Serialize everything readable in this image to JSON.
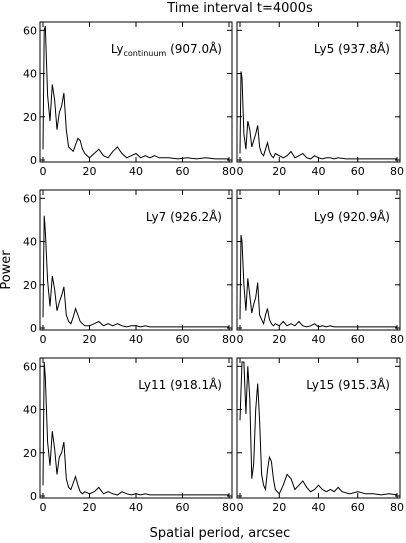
{
  "figure": {
    "title": "Time interval t=4000s",
    "xlabel": "Spatial period, arcsec",
    "ylabel": "Power"
  },
  "chart_data": [
    {
      "type": "line",
      "label_main": "Ly",
      "label_sub": "continuum",
      "label_rest": " (907.0Å)",
      "xlim": [
        0,
        80
      ],
      "ylim": [
        0,
        62
      ],
      "xticks": [
        0,
        20,
        40,
        60,
        80
      ],
      "yticks": [
        0,
        20,
        40,
        60
      ],
      "x": [
        0,
        0.5,
        1,
        2,
        3,
        4,
        5,
        6,
        7,
        8,
        9,
        10,
        11,
        12,
        13,
        14,
        15,
        16,
        17,
        18,
        19,
        20,
        22,
        24,
        26,
        28,
        30,
        32,
        34,
        36,
        38,
        40,
        42,
        44,
        46,
        48,
        50,
        54,
        58,
        62,
        66,
        70,
        74,
        78,
        80
      ],
      "y": [
        5,
        60,
        62,
        30,
        18,
        35,
        28,
        14,
        22,
        25,
        31,
        14,
        6,
        5,
        4,
        7,
        10,
        9,
        5,
        3,
        2,
        1,
        3,
        5,
        2,
        1,
        4,
        6,
        3,
        1,
        2,
        3,
        1,
        2,
        1,
        2,
        1,
        1,
        0.5,
        1,
        0.5,
        1,
        0.5,
        0.5,
        0.5
      ]
    },
    {
      "type": "line",
      "label_main": "Ly5",
      "label_sub": "",
      "label_rest": " (937.8Å)",
      "xlim": [
        0,
        80
      ],
      "ylim": [
        0,
        62
      ],
      "xticks": [
        0,
        20,
        40,
        60,
        80
      ],
      "yticks": [
        0,
        20,
        40,
        60
      ],
      "x": [
        0,
        0.5,
        1,
        2,
        3,
        4,
        5,
        6,
        7,
        8,
        9,
        10,
        11,
        12,
        13,
        14,
        15,
        16,
        17,
        18,
        20,
        22,
        24,
        26,
        28,
        30,
        32,
        34,
        36,
        38,
        40,
        42,
        44,
        46,
        48,
        50,
        54,
        58,
        62,
        66,
        70,
        74,
        78,
        80
      ],
      "y": [
        3,
        41,
        38,
        12,
        5,
        18,
        14,
        6,
        9,
        12,
        16,
        6,
        3,
        2,
        5,
        8,
        4,
        2,
        1,
        3,
        2,
        1,
        2,
        4,
        1,
        2,
        3,
        1,
        0.5,
        2,
        1,
        0.5,
        1,
        1,
        0.5,
        1,
        0.5,
        0.5,
        0.5,
        0.5,
        0.5,
        0.5,
        0.5,
        0.5
      ]
    },
    {
      "type": "line",
      "label_main": "Ly7",
      "label_sub": "",
      "label_rest": " (926.2Å)",
      "xlim": [
        0,
        80
      ],
      "ylim": [
        0,
        62
      ],
      "xticks": [
        0,
        20,
        40,
        60,
        80
      ],
      "yticks": [
        0,
        20,
        40,
        60
      ],
      "x": [
        0,
        0.5,
        1,
        2,
        3,
        4,
        5,
        6,
        7,
        8,
        9,
        10,
        11,
        12,
        13,
        14,
        15,
        16,
        17,
        18,
        20,
        22,
        24,
        26,
        28,
        30,
        32,
        34,
        36,
        38,
        40,
        42,
        44,
        46,
        48,
        50,
        54,
        58,
        62,
        66,
        70,
        74,
        78,
        80
      ],
      "y": [
        5,
        52,
        45,
        22,
        10,
        24,
        18,
        8,
        12,
        15,
        19,
        6,
        3,
        2,
        5,
        9,
        6,
        3,
        2,
        1,
        1,
        2,
        3,
        1,
        2,
        1,
        2,
        1,
        0.5,
        1,
        1,
        0.5,
        1,
        0.5,
        0.5,
        0.5,
        0.5,
        0.5,
        0.5,
        0.5,
        0.5,
        0.5,
        0.5,
        0.5
      ]
    },
    {
      "type": "line",
      "label_main": "Ly9",
      "label_sub": "",
      "label_rest": " (920.9Å)",
      "xlim": [
        0,
        80
      ],
      "ylim": [
        0,
        62
      ],
      "xticks": [
        0,
        20,
        40,
        60,
        80
      ],
      "yticks": [
        0,
        20,
        40,
        60
      ],
      "x": [
        0,
        0.5,
        1,
        2,
        3,
        4,
        5,
        6,
        7,
        8,
        9,
        10,
        11,
        12,
        13,
        14,
        15,
        16,
        17,
        18,
        20,
        22,
        24,
        26,
        28,
        30,
        32,
        34,
        36,
        38,
        40,
        42,
        44,
        46,
        48,
        50,
        54,
        58,
        62,
        66,
        70,
        74,
        78,
        80
      ],
      "y": [
        4,
        43,
        40,
        20,
        8,
        23,
        15,
        7,
        11,
        14,
        21,
        6,
        4,
        2,
        6,
        9,
        4,
        2,
        1,
        2,
        1,
        3,
        1,
        2,
        1,
        3,
        1,
        0.5,
        1,
        2,
        0.5,
        1,
        0.5,
        1,
        0.5,
        0.5,
        0.5,
        0.5,
        0.5,
        0.5,
        0.5,
        0.5,
        0.5,
        0.5
      ]
    },
    {
      "type": "line",
      "label_main": "Ly11",
      "label_sub": "",
      "label_rest": " (918.1Å)",
      "xlim": [
        0,
        80
      ],
      "ylim": [
        0,
        62
      ],
      "xticks": [
        0,
        20,
        40,
        60,
        80
      ],
      "yticks": [
        0,
        20,
        40,
        60
      ],
      "x": [
        0,
        0.5,
        1,
        2,
        3,
        4,
        5,
        6,
        7,
        8,
        9,
        10,
        11,
        12,
        13,
        14,
        15,
        16,
        17,
        18,
        20,
        22,
        24,
        26,
        28,
        30,
        32,
        34,
        36,
        38,
        40,
        42,
        44,
        46,
        48,
        50,
        54,
        58,
        62,
        66,
        70,
        74,
        78,
        80
      ],
      "y": [
        5,
        62,
        55,
        25,
        14,
        30,
        22,
        10,
        18,
        20,
        25,
        8,
        4,
        3,
        6,
        9,
        5,
        2,
        1,
        2,
        1,
        2,
        4,
        1,
        2,
        1,
        0.5,
        2,
        1,
        0.5,
        1,
        0.5,
        1,
        0.5,
        0.5,
        0.5,
        0.5,
        0.5,
        0.5,
        0.5,
        0.5,
        0.5,
        0.5,
        0.5
      ]
    },
    {
      "type": "line",
      "label_main": "Ly15",
      "label_sub": "",
      "label_rest": " (915.3Å)",
      "xlim": [
        0,
        80
      ],
      "ylim": [
        0,
        62
      ],
      "xticks": [
        0,
        20,
        40,
        60,
        80
      ],
      "yticks": [
        0,
        20,
        40,
        60
      ],
      "x": [
        0,
        1,
        2,
        3,
        4,
        5,
        6,
        7,
        8,
        9,
        10,
        11,
        12,
        13,
        14,
        15,
        16,
        17,
        18,
        19,
        20,
        22,
        24,
        26,
        28,
        30,
        32,
        34,
        36,
        38,
        40,
        42,
        44,
        46,
        48,
        50,
        52,
        56,
        60,
        64,
        68,
        72,
        76,
        80
      ],
      "y": [
        35,
        62,
        62,
        38,
        60,
        45,
        8,
        15,
        40,
        52,
        35,
        10,
        5,
        3,
        12,
        18,
        16,
        8,
        3,
        2,
        1,
        5,
        10,
        8,
        3,
        5,
        7,
        4,
        2,
        3,
        5,
        3,
        2,
        3,
        2,
        4,
        2,
        1,
        2,
        1,
        1,
        0.5,
        1,
        0.5
      ]
    }
  ]
}
